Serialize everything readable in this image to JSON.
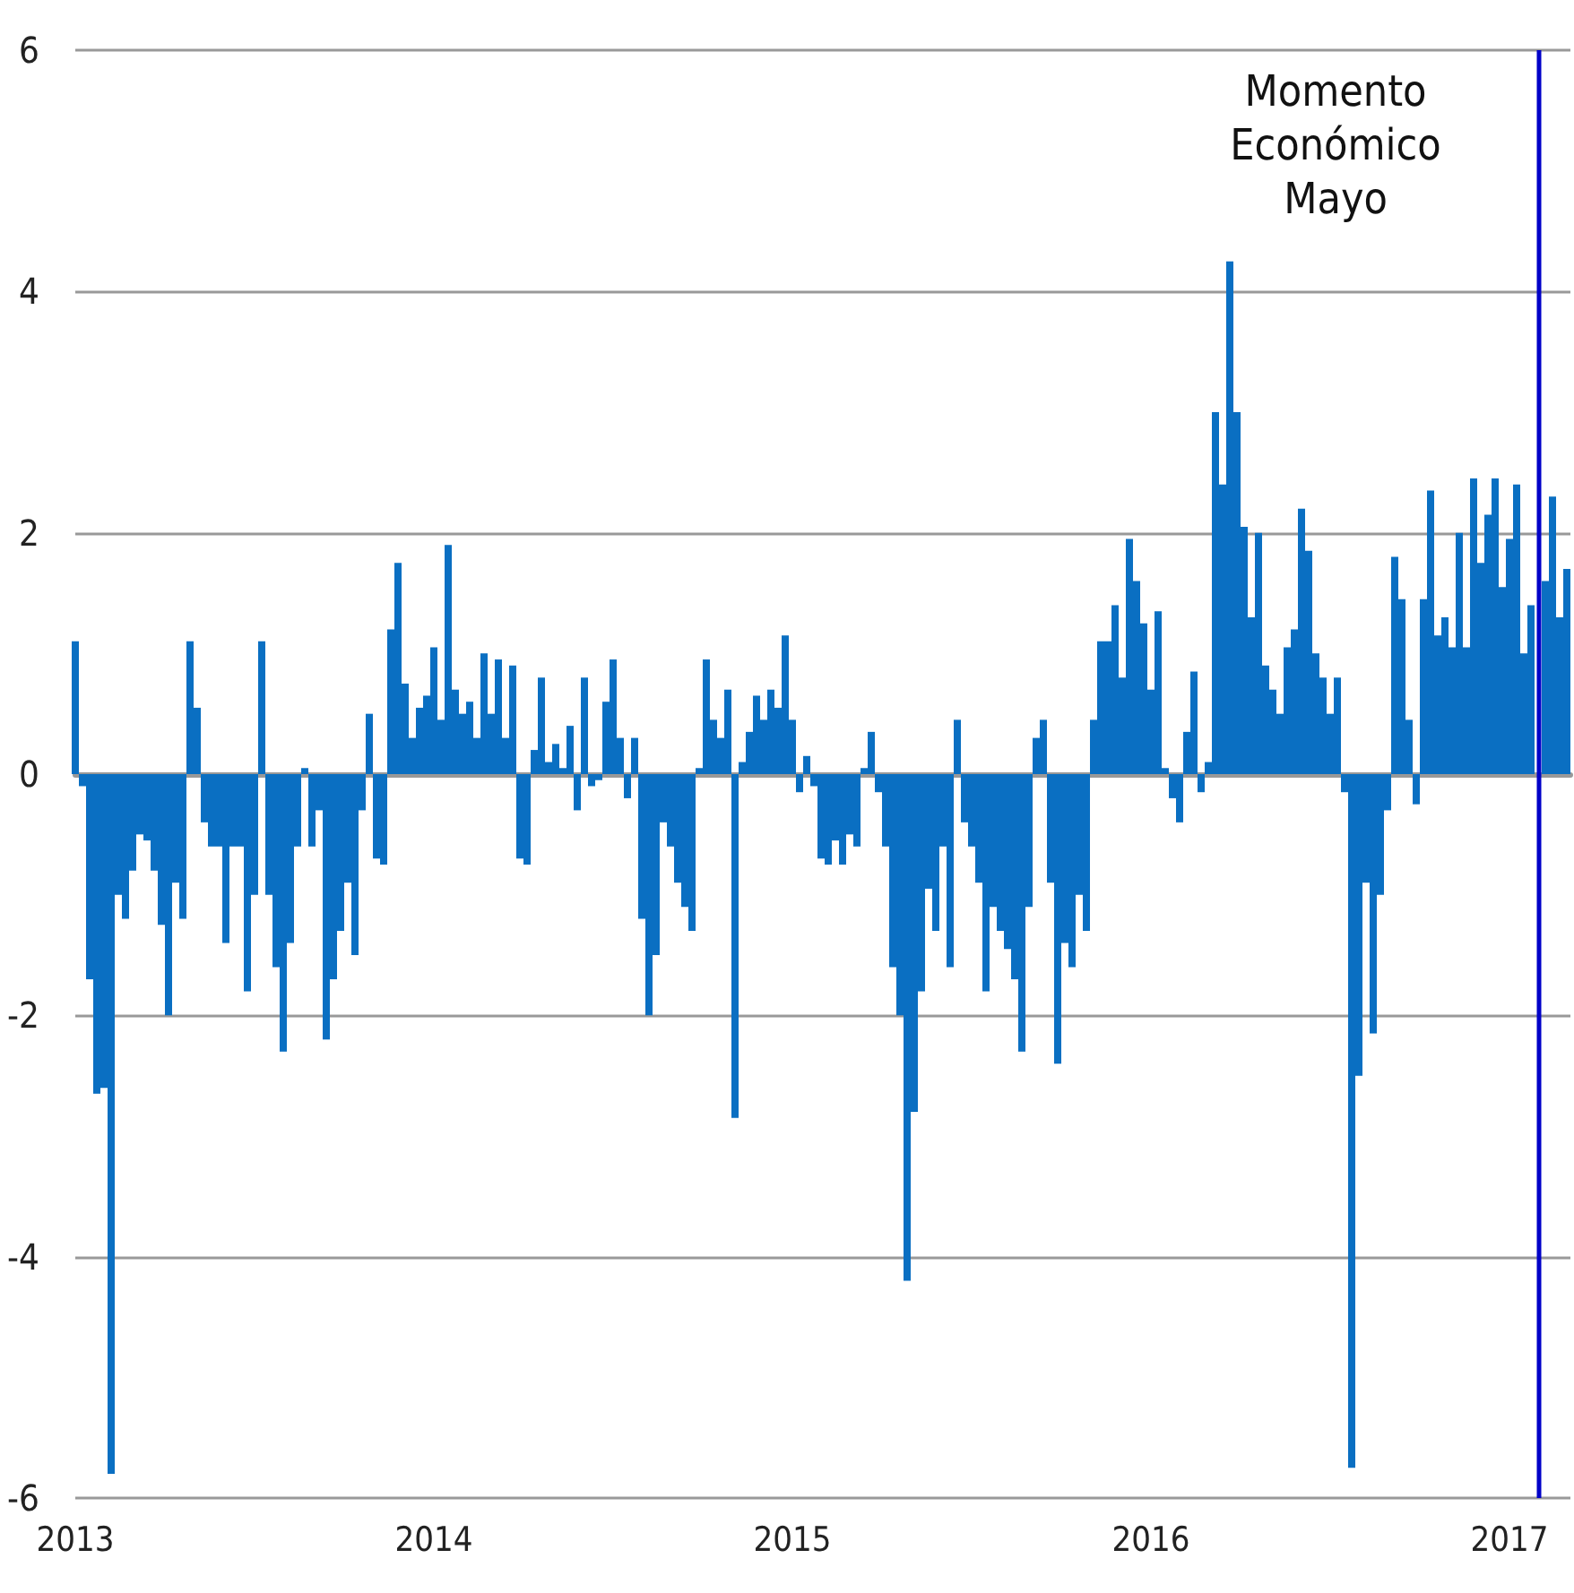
{
  "chart_data": {
    "type": "bar",
    "color": "#0a6fc2",
    "x": [
      2013,
      2013.02,
      2013.04,
      2013.06,
      2013.08,
      2013.1,
      2013.12,
      2013.14,
      2013.16,
      2013.18,
      2013.2,
      2013.22,
      2013.24,
      2013.26,
      2013.28,
      2013.3,
      2013.32,
      2013.34,
      2013.36,
      2013.38,
      2013.4,
      2013.42,
      2013.44,
      2013.46,
      2013.48,
      2013.5,
      2013.52,
      2013.54,
      2013.56,
      2013.58,
      2013.6,
      2013.62,
      2013.64,
      2013.66,
      2013.68,
      2013.7,
      2013.72,
      2013.74,
      2013.76,
      2013.78,
      2013.8,
      2013.82,
      2013.84,
      2013.86,
      2013.88,
      2013.9,
      2013.92,
      2013.94,
      2013.96,
      2013.98,
      2014,
      2014.02,
      2014.04,
      2014.06,
      2014.08,
      2014.1,
      2014.12,
      2014.14,
      2014.16,
      2014.18,
      2014.2,
      2014.22,
      2014.24,
      2014.26,
      2014.28,
      2014.3,
      2014.32,
      2014.34,
      2014.36,
      2014.38,
      2014.4,
      2014.42,
      2014.44,
      2014.46,
      2014.48,
      2014.5,
      2014.52,
      2014.54,
      2014.56,
      2014.58,
      2014.6,
      2014.62,
      2014.64,
      2014.66,
      2014.68,
      2014.7,
      2014.72,
      2014.74,
      2014.76,
      2014.78,
      2014.8,
      2014.82,
      2014.84,
      2014.86,
      2014.88,
      2014.9,
      2014.92,
      2014.94,
      2014.96,
      2014.98,
      2015,
      2015.02,
      2015.04,
      2015.06,
      2015.08,
      2015.1,
      2015.12,
      2015.14,
      2015.16,
      2015.18,
      2015.2,
      2015.22,
      2015.24,
      2015.26,
      2015.28,
      2015.3,
      2015.32,
      2015.34,
      2015.36,
      2015.38,
      2015.4,
      2015.42,
      2015.44,
      2015.46,
      2015.48,
      2015.5,
      2015.52,
      2015.54,
      2015.56,
      2015.58,
      2015.6,
      2015.62,
      2015.64,
      2015.66,
      2015.68,
      2015.7,
      2015.72,
      2015.74,
      2015.76,
      2015.78,
      2015.8,
      2015.82,
      2015.84,
      2015.86,
      2015.88,
      2015.9,
      2015.92,
      2015.94,
      2015.96,
      2015.98,
      2016,
      2016.02,
      2016.04,
      2016.06,
      2016.08,
      2016.1,
      2016.12,
      2016.14,
      2016.16,
      2016.18,
      2016.2,
      2016.22,
      2016.24,
      2016.26,
      2016.28,
      2016.3,
      2016.32,
      2016.34,
      2016.36,
      2016.38,
      2016.4,
      2016.42,
      2016.44,
      2016.46,
      2016.48,
      2016.5,
      2016.52,
      2016.54,
      2016.56,
      2016.58,
      2016.6,
      2016.62,
      2016.64,
      2016.66,
      2016.68,
      2016.7,
      2016.72,
      2016.74,
      2016.76,
      2016.78,
      2016.8,
      2016.82,
      2016.84,
      2016.86,
      2016.88,
      2016.9,
      2016.92,
      2016.94,
      2016.96,
      2016.98,
      2017,
      2017.02,
      2017.04,
      2017.06,
      2017.08,
      2017.1,
      2017.12,
      2017.14,
      2017.16
    ],
    "values": [
      1.1,
      -0.1,
      -1.7,
      -2.65,
      -2.6,
      -5.8,
      -1.0,
      -1.2,
      -0.8,
      -0.5,
      -0.55,
      -0.8,
      -1.25,
      -2.0,
      -0.9,
      -1.2,
      1.1,
      0.55,
      -0.4,
      -0.6,
      -0.6,
      -1.4,
      -0.6,
      -0.6,
      -1.8,
      -1.0,
      1.1,
      -1.0,
      -1.6,
      -2.3,
      -1.4,
      -0.6,
      0.05,
      -0.6,
      -0.3,
      -2.2,
      -1.7,
      -1.3,
      -0.9,
      -1.5,
      -0.3,
      0.5,
      -0.7,
      -0.75,
      1.2,
      1.75,
      0.75,
      0.3,
      0.55,
      0.65,
      1.05,
      0.45,
      1.9,
      0.7,
      0.5,
      0.6,
      0.3,
      1.0,
      0.5,
      0.95,
      0.3,
      0.9,
      -0.7,
      -0.75,
      0.2,
      0.8,
      0.1,
      0.25,
      0.05,
      0.4,
      -0.3,
      0.8,
      -0.1,
      -0.05,
      0.6,
      0.95,
      0.3,
      -0.2,
      0.3,
      -1.2,
      -2.0,
      -1.5,
      -0.4,
      -0.6,
      -0.9,
      -1.1,
      -1.3,
      0.05,
      0.95,
      0.45,
      0.3,
      0.7,
      -2.85,
      0.1,
      0.35,
      0.65,
      0.45,
      0.7,
      0.55,
      1.15,
      0.45,
      -0.15,
      0.15,
      -0.1,
      -0.7,
      -0.75,
      -0.55,
      -0.75,
      -0.5,
      -0.6,
      0.05,
      0.35,
      -0.15,
      -0.6,
      -1.6,
      -2.0,
      -4.2,
      -2.8,
      -1.8,
      -0.95,
      -1.3,
      -0.6,
      -1.6,
      0.45,
      -0.4,
      -0.6,
      -0.9,
      -1.8,
      -1.1,
      -1.3,
      -1.45,
      -1.7,
      -2.3,
      -1.1,
      0.3,
      0.45,
      -0.9,
      -2.4,
      -1.4,
      -1.6,
      -1.0,
      -1.3,
      0.45,
      1.1,
      1.1,
      1.4,
      0.8,
      1.95,
      1.6,
      1.25,
      0.7,
      1.35,
      0.05,
      -0.2,
      -0.4,
      0.35,
      0.85,
      -0.15,
      0.1,
      3.0,
      2.4,
      4.25,
      3.0,
      2.05,
      1.3,
      2.0,
      0.9,
      0.7,
      0.5,
      1.05,
      1.2,
      2.2,
      1.85,
      1.0,
      0.8,
      0.5,
      0.8,
      -0.15,
      -5.75,
      -2.5,
      -0.9,
      -2.15,
      -1.0,
      -0.3,
      1.8,
      1.45,
      0.45,
      -0.25,
      1.45,
      2.35,
      1.15,
      1.3,
      1.05,
      2.0,
      1.05,
      2.45,
      1.75,
      2.15,
      2.45,
      1.55,
      1.95,
      2.4,
      1.0,
      1.4,
      null,
      1.6,
      2.3,
      1.3,
      1.7
    ],
    "xlim": [
      2013,
      2017.17
    ],
    "xticks": [
      2013,
      2014,
      2015,
      2016,
      2017
    ],
    "ylim": [
      -6,
      6
    ],
    "yticks": [
      -6,
      -4,
      -2,
      0,
      2,
      4,
      6
    ],
    "grid": "y",
    "ref_lines": [
      {
        "axis": "x",
        "value": 2017.08,
        "label": "Momento\nEconómico\nMayo",
        "color": "#0000c8"
      }
    ]
  }
}
